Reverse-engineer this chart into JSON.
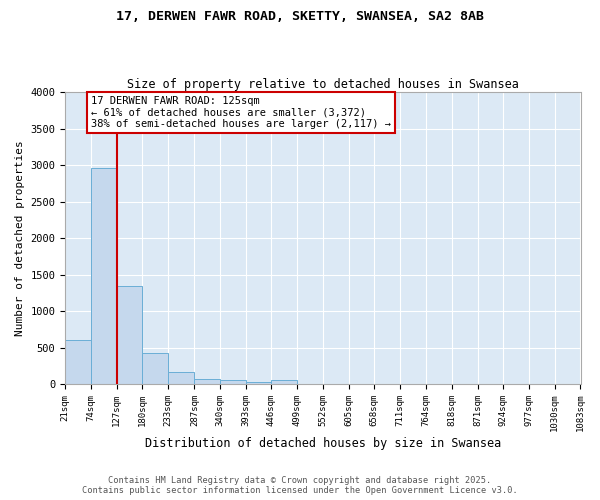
{
  "title": "17, DERWEN FAWR ROAD, SKETTY, SWANSEA, SA2 8AB",
  "subtitle": "Size of property relative to detached houses in Swansea",
  "xlabel": "Distribution of detached houses by size in Swansea",
  "ylabel": "Number of detached properties",
  "bar_color": "#c5d8ed",
  "bar_edge_color": "#6aaed6",
  "background_color": "#dce9f5",
  "annotation_text": "17 DERWEN FAWR ROAD: 125sqm\n← 61% of detached houses are smaller (3,372)\n38% of semi-detached houses are larger (2,117) →",
  "property_line_color": "#cc0000",
  "annotation_box_color": "#cc0000",
  "ylim": [
    0,
    4000
  ],
  "categories": [
    "21sqm",
    "74sqm",
    "127sqm",
    "180sqm",
    "233sqm",
    "287sqm",
    "340sqm",
    "393sqm",
    "446sqm",
    "499sqm",
    "552sqm",
    "605sqm",
    "658sqm",
    "711sqm",
    "764sqm",
    "818sqm",
    "871sqm",
    "924sqm",
    "977sqm",
    "1030sqm",
    "1083sqm"
  ],
  "bin_edges": [
    21,
    74,
    127,
    180,
    233,
    287,
    340,
    393,
    446,
    499,
    552,
    605,
    658,
    711,
    764,
    818,
    871,
    924,
    977,
    1030,
    1083
  ],
  "values": [
    600,
    2960,
    1340,
    430,
    165,
    75,
    55,
    35,
    55,
    0,
    0,
    0,
    0,
    0,
    0,
    0,
    0,
    0,
    0,
    0
  ],
  "footer": "Contains HM Land Registry data © Crown copyright and database right 2025.\nContains public sector information licensed under the Open Government Licence v3.0.",
  "yticks": [
    0,
    500,
    1000,
    1500,
    2000,
    2500,
    3000,
    3500,
    4000
  ]
}
